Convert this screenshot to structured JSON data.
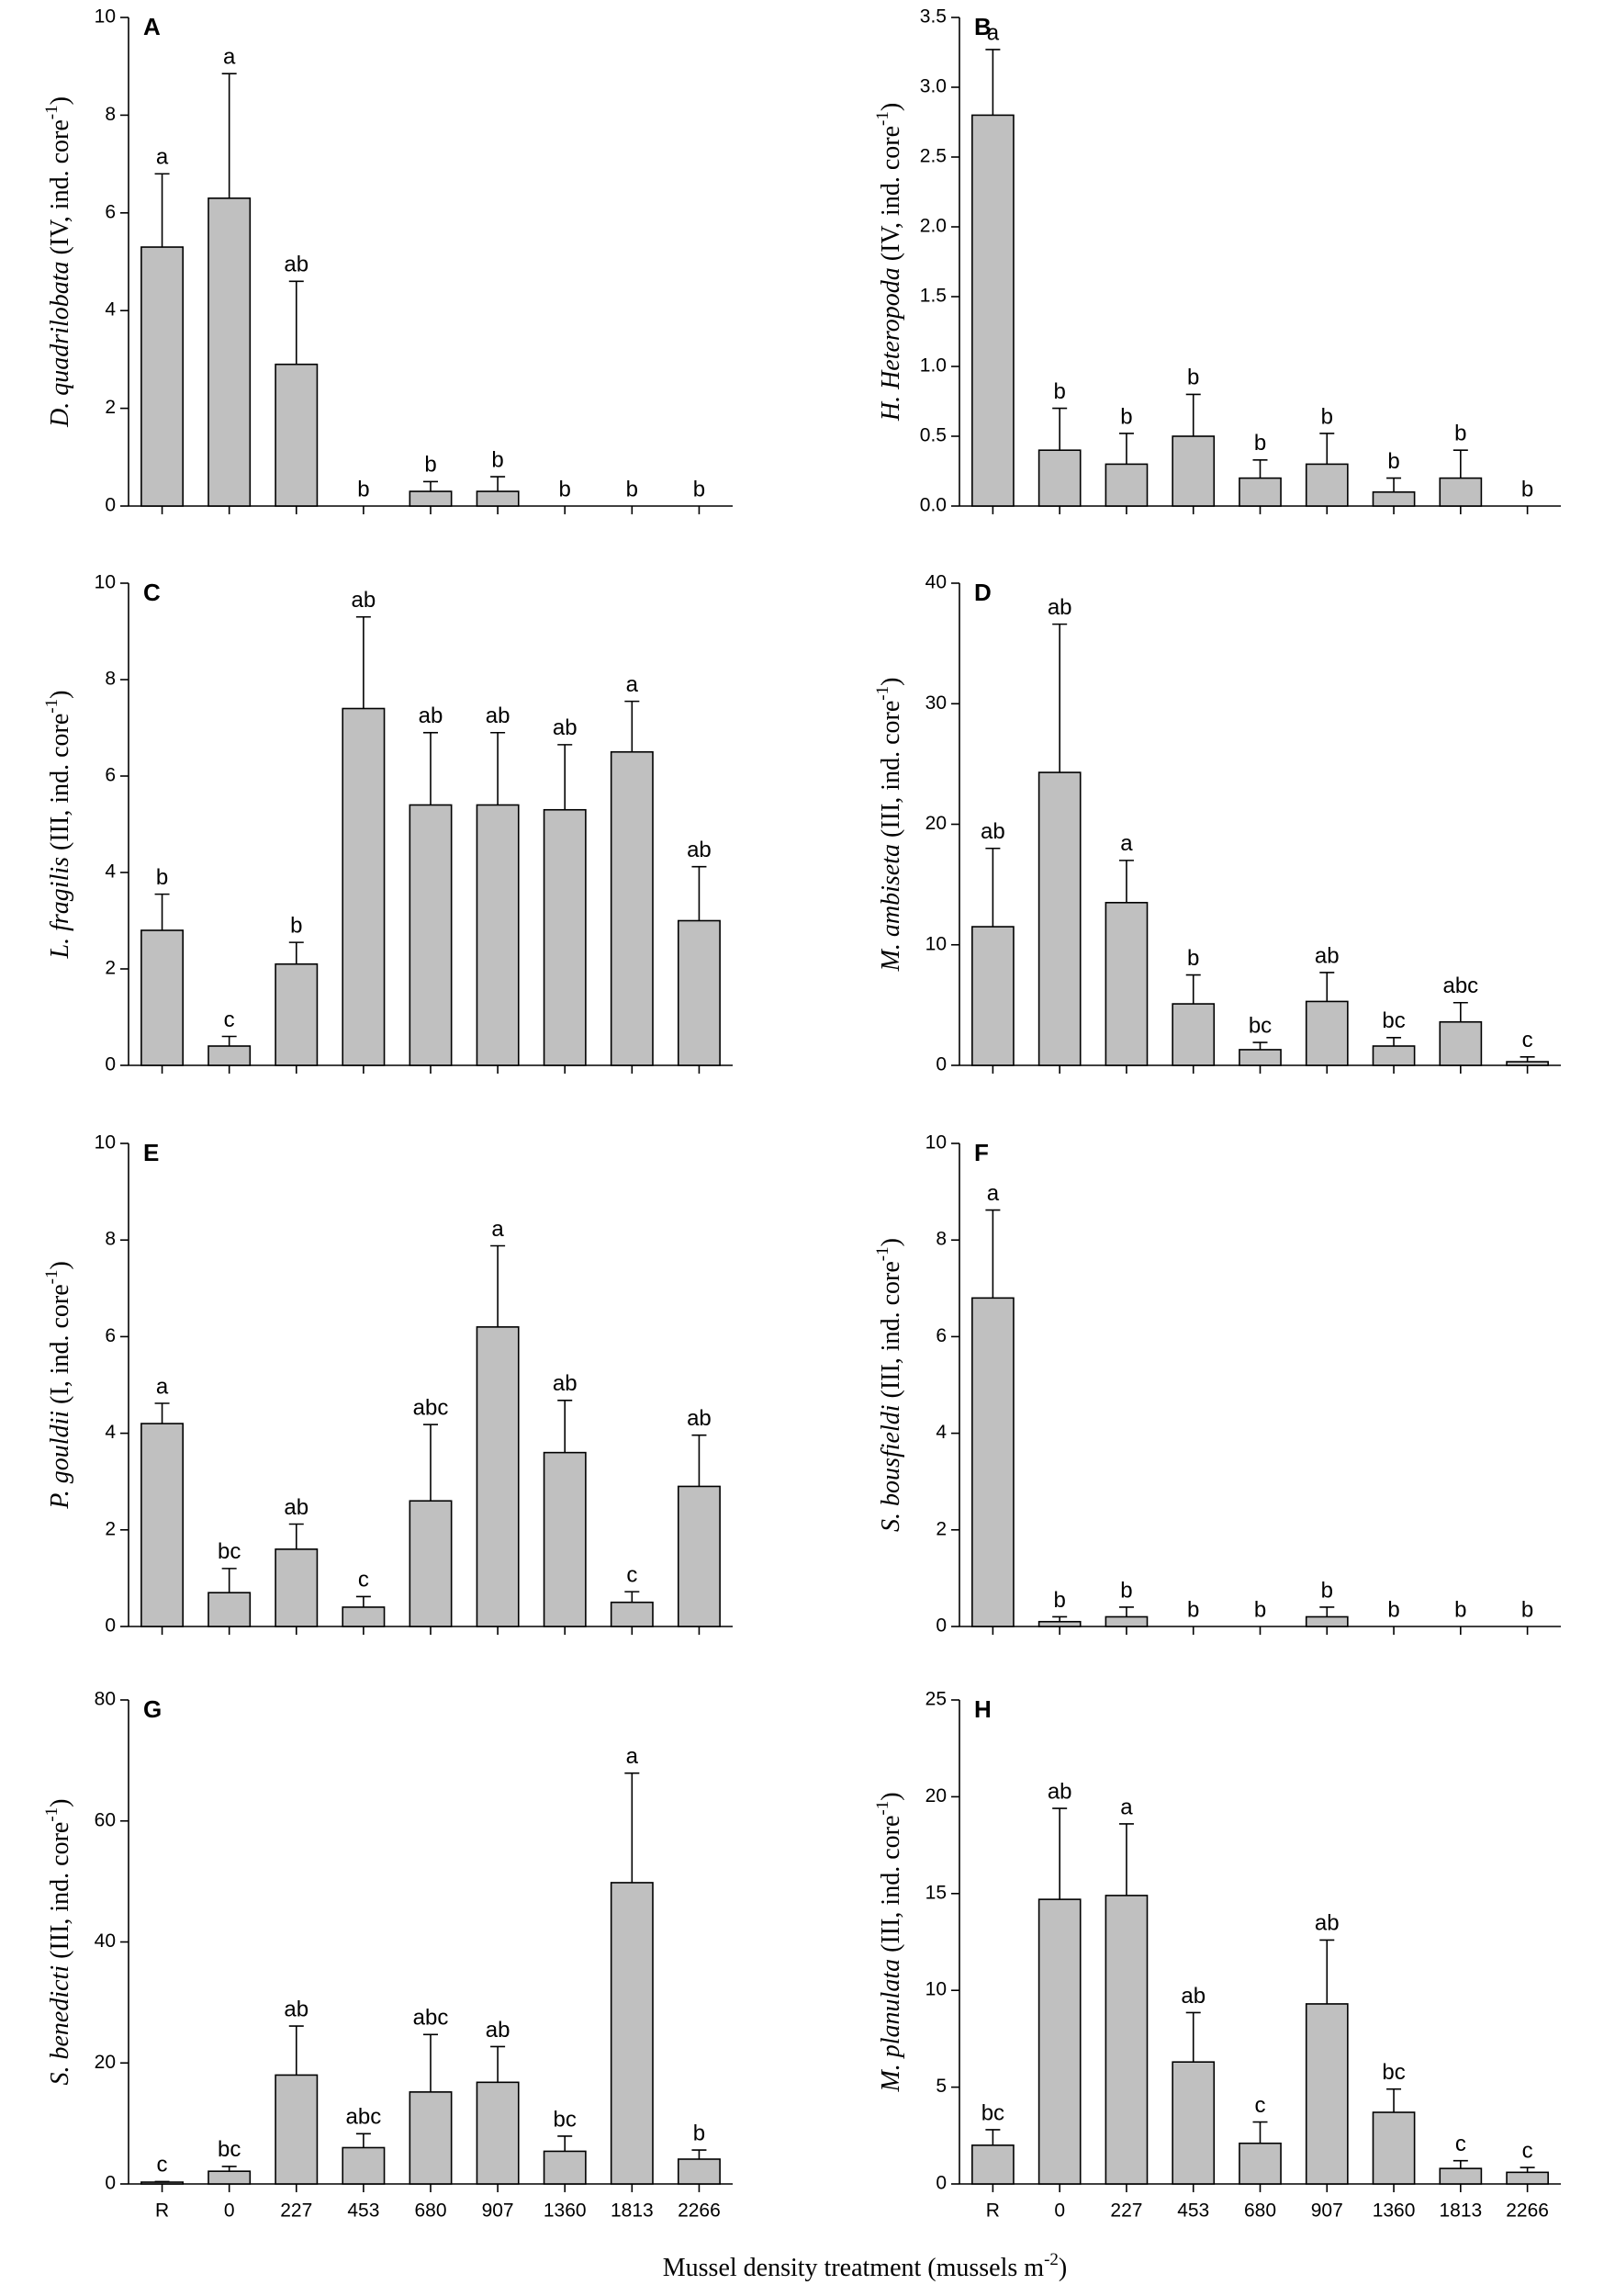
{
  "xlabel": {
    "text": "Mussel density treatment (mussels m",
    "sup": "-2",
    "close": ")"
  },
  "chart_data": [
    {
      "type": "bar",
      "panel": "A",
      "ylabel": {
        "species": "D. quadrilobata",
        "rest": " (IV, ind. core",
        "sup": "-1",
        "close": ")"
      },
      "categories": [
        null,
        null,
        null,
        null,
        null,
        null,
        null,
        null,
        null
      ],
      "values": [
        5.3,
        6.3,
        2.9,
        0,
        0.3,
        0.3,
        0,
        0,
        0
      ],
      "errors": [
        1.5,
        2.55,
        1.7,
        0,
        0.2,
        0.3,
        0,
        0,
        0
      ],
      "letters": [
        "a",
        "a",
        "ab",
        "b",
        "b",
        "b",
        "b",
        "b",
        "b"
      ],
      "color": "#c0c0c0",
      "ylim": [
        0,
        10
      ],
      "yticks": [
        0,
        2,
        4,
        6,
        8,
        10
      ]
    },
    {
      "type": "bar",
      "panel": "B",
      "ylabel": {
        "species": "H. Heteropoda",
        "rest": " (IV, ind. core",
        "sup": "-1",
        "close": ")"
      },
      "categories": [
        null,
        null,
        null,
        null,
        null,
        null,
        null,
        null,
        null
      ],
      "values": [
        2.8,
        0.4,
        0.3,
        0.5,
        0.2,
        0.3,
        0.1,
        0.2,
        0
      ],
      "errors": [
        0.47,
        0.3,
        0.22,
        0.3,
        0.13,
        0.22,
        0.1,
        0.2,
        0
      ],
      "letters": [
        "a",
        "b",
        "b",
        "b",
        "b",
        "b",
        "b",
        "b",
        "b"
      ],
      "color": "#c0c0c0",
      "ylim": [
        0,
        3.5
      ],
      "yticks": [
        {
          "value": 0,
          "label": "0.0"
        },
        {
          "value": 0.5,
          "label": "0.5"
        },
        {
          "value": 1,
          "label": "1.0"
        },
        {
          "value": 1.5,
          "label": "1.5"
        },
        {
          "value": 2,
          "label": "2.0"
        },
        {
          "value": 2.5,
          "label": "2.5"
        },
        {
          "value": 3,
          "label": "3.0"
        },
        {
          "value": 3.5,
          "label": "3.5"
        }
      ]
    },
    {
      "type": "bar",
      "panel": "C",
      "ylabel": {
        "species": "L. fragilis",
        "rest": " (III, ind. core",
        "sup": "-1",
        "close": ")"
      },
      "categories": [
        null,
        null,
        null,
        null,
        null,
        null,
        null,
        null,
        null
      ],
      "values": [
        2.8,
        0.4,
        2.1,
        7.4,
        5.4,
        5.4,
        5.3,
        6.5,
        3.0
      ],
      "errors": [
        0.75,
        0.2,
        0.45,
        1.9,
        1.5,
        1.5,
        1.35,
        1.05,
        1.12
      ],
      "letters": [
        "b",
        "c",
        "b",
        "ab",
        "ab",
        "ab",
        "ab",
        "a",
        "ab"
      ],
      "color": "#c0c0c0",
      "ylim": [
        0,
        10
      ],
      "yticks": [
        0,
        2,
        4,
        6,
        8,
        10
      ]
    },
    {
      "type": "bar",
      "panel": "D",
      "ylabel": {
        "species": "M. ambiseta",
        "rest": " (III, ind. core",
        "sup": "-1",
        "close": ")"
      },
      "categories": [
        null,
        null,
        null,
        null,
        null,
        null,
        null,
        null,
        null
      ],
      "values": [
        11.5,
        24.3,
        13.5,
        5.1,
        1.3,
        5.3,
        1.6,
        3.6,
        0.3
      ],
      "errors": [
        6.5,
        12.3,
        3.5,
        2.4,
        0.6,
        2.4,
        0.7,
        1.6,
        0.4
      ],
      "letters": [
        "ab",
        "ab",
        "a",
        "b",
        "bc",
        "ab",
        "bc",
        "abc",
        "c"
      ],
      "color": "#c0c0c0",
      "ylim": [
        0,
        40
      ],
      "yticks": [
        0,
        10,
        20,
        30,
        40
      ]
    },
    {
      "type": "bar",
      "panel": "E",
      "ylabel": {
        "species": "P. gouldii",
        "rest": " (I, ind. core",
        "sup": "-1",
        "close": ")"
      },
      "categories": [
        null,
        null,
        null,
        null,
        null,
        null,
        null,
        null,
        null
      ],
      "values": [
        4.2,
        0.7,
        1.6,
        0.4,
        2.6,
        6.2,
        3.6,
        0.5,
        2.9
      ],
      "errors": [
        0.42,
        0.5,
        0.52,
        0.22,
        1.58,
        1.68,
        1.08,
        0.22,
        1.06
      ],
      "letters": [
        "a",
        "bc",
        "ab",
        "c",
        "abc",
        "a",
        "ab",
        "c",
        "ab"
      ],
      "color": "#c0c0c0",
      "ylim": [
        0,
        10
      ],
      "yticks": [
        0,
        2,
        4,
        6,
        8,
        10
      ]
    },
    {
      "type": "bar",
      "panel": "F",
      "ylabel": {
        "species": "S. bousfieldi",
        "rest": " (III, ind. core",
        "sup": "-1",
        "close": ")"
      },
      "categories": [
        null,
        null,
        null,
        null,
        null,
        null,
        null,
        null,
        null
      ],
      "values": [
        6.8,
        0.1,
        0.2,
        0,
        0,
        0.2,
        0,
        0,
        0
      ],
      "errors": [
        1.82,
        0.1,
        0.2,
        0,
        0,
        0.2,
        0,
        0,
        0
      ],
      "letters": [
        "a",
        "b",
        "b",
        "b",
        "b",
        "b",
        "b",
        "b",
        "b"
      ],
      "color": "#c0c0c0",
      "ylim": [
        0,
        10
      ],
      "yticks": [
        0,
        2,
        4,
        6,
        8,
        10
      ]
    },
    {
      "type": "bar",
      "panel": "G",
      "ylabel": {
        "species": "S. benedicti",
        "rest": " (III, ind. core",
        "sup": "-1",
        "close": ")"
      },
      "categories": [
        "R",
        "0",
        "227",
        "453",
        "680",
        "907",
        "1360",
        "1813",
        "2266"
      ],
      "values": [
        0.3,
        2.1,
        18,
        6,
        15.2,
        16.8,
        5.4,
        49.8,
        4.1
      ],
      "errors": [
        0.1,
        0.8,
        8.1,
        2.3,
        9.5,
        5.9,
        2.5,
        18.1,
        1.5
      ],
      "letters": [
        "c",
        "bc",
        "ab",
        "abc",
        "abc",
        "ab",
        "bc",
        "a",
        "b"
      ],
      "color": "#c0c0c0",
      "ylim": [
        0,
        80
      ],
      "yticks": [
        0,
        20,
        40,
        60,
        80
      ]
    },
    {
      "type": "bar",
      "panel": "H",
      "ylabel": {
        "species": "M. planulata",
        "rest": " (III, ind. core",
        "sup": "-1",
        "close": ")"
      },
      "categories": [
        "R",
        "0",
        "227",
        "453",
        "680",
        "907",
        "1360",
        "1813",
        "2266"
      ],
      "values": [
        2.0,
        14.7,
        14.9,
        6.3,
        2.1,
        9.3,
        3.7,
        0.8,
        0.6
      ],
      "errors": [
        0.8,
        4.7,
        3.7,
        2.55,
        1.1,
        3.3,
        1.2,
        0.4,
        0.25
      ],
      "letters": [
        "bc",
        "ab",
        "a",
        "ab",
        "c",
        "ab",
        "bc",
        "c",
        "c"
      ],
      "color": "#c0c0c0",
      "ylim": [
        0,
        25
      ],
      "yticks": [
        0,
        5,
        10,
        15,
        20,
        25
      ]
    }
  ]
}
